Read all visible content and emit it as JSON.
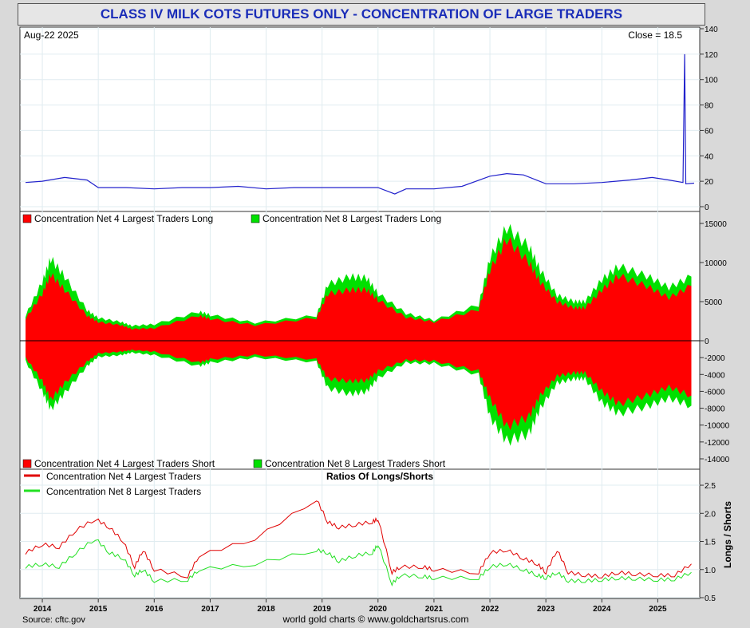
{
  "title": "CLASS IV MILK COTS FUTURES ONLY - CONCENTRATION OF LARGE TRADERS",
  "footer": {
    "source": "Source: cftc.gov",
    "credit": "world gold charts © www.goldchartsrus.com"
  },
  "colors": {
    "line_blue": "#2222cc",
    "red": "#ff0000",
    "green": "#00e000",
    "ratio_red": "#e00000",
    "ratio_green": "#22e022"
  },
  "chart_data": [
    {
      "type": "line",
      "panel": "top",
      "label_left": "Aug-22  2025",
      "label_right": "Close = 18.5",
      "ylim": [
        0,
        140
      ],
      "yticks": [
        "0",
        "20",
        "40",
        "60",
        "80",
        "100",
        "120",
        "140"
      ],
      "x": [
        2013.7,
        2014.0,
        2014.4,
        2014.8,
        2015.0,
        2015.5,
        2016.0,
        2016.5,
        2017.0,
        2017.5,
        2018.0,
        2018.5,
        2019.0,
        2019.5,
        2020.0,
        2020.3,
        2020.5,
        2021.0,
        2021.5,
        2022.0,
        2022.3,
        2022.6,
        2023.0,
        2023.5,
        2024.0,
        2024.5,
        2024.9,
        2025.2,
        2025.45,
        2025.48,
        2025.5,
        2025.65
      ],
      "values": [
        19,
        20,
        23,
        21,
        15,
        15,
        14,
        15,
        15,
        16,
        14,
        15,
        15,
        15,
        15,
        10,
        14,
        14,
        16,
        24,
        26,
        25,
        18,
        18,
        19,
        21,
        23,
        21,
        19,
        120,
        18,
        18.5
      ]
    },
    {
      "type": "area",
      "panel": "middle",
      "legend_top": [
        "Concentration Net 4 Largest Traders Long",
        "Concentration Net 8 Largest Traders Long"
      ],
      "legend_bottom": [
        "Concentration Net 4 Largest Traders Short",
        "Concentration Net 8 Largest Traders Short"
      ],
      "ylim": [
        -15000,
        16000
      ],
      "yticks": [
        "-14000",
        "-12000",
        "-10000",
        "-8000",
        "-6000",
        "-4000",
        "-2000",
        "0",
        "5000",
        "10000",
        "15000"
      ],
      "x": [
        2013.7,
        2014.0,
        2014.15,
        2014.4,
        2014.8,
        2015.0,
        2015.4,
        2015.6,
        2016.0,
        2016.8,
        2017.0,
        2017.8,
        2018.9,
        2019.1,
        2019.5,
        2019.8,
        2020.0,
        2020.5,
        2021.0,
        2021.8,
        2022.0,
        2022.3,
        2022.7,
        2022.9,
        2023.2,
        2023.5,
        2023.7,
        2024.0,
        2024.3,
        2024.8,
        2025.2,
        2025.6
      ],
      "series": [
        {
          "name": "Concentration Net 4 Largest Traders Long",
          "values": [
            2800,
            6000,
            8500,
            6500,
            3200,
            2400,
            2000,
            1500,
            1600,
            3200,
            2800,
            2000,
            2900,
            6000,
            6500,
            6500,
            5200,
            3000,
            2400,
            4000,
            9000,
            13000,
            10000,
            7500,
            5000,
            4200,
            4200,
            6500,
            8300,
            7000,
            5500,
            7000
          ]
        },
        {
          "name": "Concentration Net 8 Largest Traders Long",
          "values": [
            3200,
            7500,
            10500,
            8200,
            3900,
            2900,
            2400,
            1900,
            2100,
            3700,
            3300,
            2300,
            3200,
            7200,
            8200,
            8000,
            6000,
            3500,
            2600,
            4600,
            10500,
            14500,
            12000,
            9000,
            5800,
            5000,
            5000,
            7800,
            9500,
            8300,
            6800,
            8200
          ]
        },
        {
          "name": "Concentration Net 4 Largest Traders Short",
          "values": [
            -2000,
            -4800,
            -7000,
            -5000,
            -2500,
            -1500,
            -1300,
            -1100,
            -1300,
            -2600,
            -2200,
            -1700,
            -2200,
            -4500,
            -4800,
            -4700,
            -3600,
            -2300,
            -2400,
            -3600,
            -6800,
            -10200,
            -9000,
            -6500,
            -4200,
            -3800,
            -3800,
            -6000,
            -7500,
            -6500,
            -5500,
            -6500
          ]
        },
        {
          "name": "Concentration Net 8 Largest Traders Short",
          "values": [
            -2400,
            -6000,
            -8100,
            -6200,
            -3000,
            -1900,
            -1700,
            -1400,
            -1700,
            -3000,
            -2600,
            -2000,
            -2500,
            -5600,
            -6300,
            -6000,
            -4400,
            -2600,
            -2700,
            -4000,
            -9000,
            -11900,
            -11000,
            -8000,
            -5000,
            -4500,
            -4500,
            -7300,
            -8600,
            -7800,
            -6800,
            -7700
          ]
        }
      ]
    },
    {
      "type": "line",
      "panel": "bottom",
      "title": "Ratios Of Longs/Shorts",
      "ylabel": "Longs / Shorts",
      "ylim": [
        0.5,
        2.6
      ],
      "yticks": [
        "0.5",
        "1.0",
        "1.5",
        "2.0",
        "2.5"
      ],
      "xticks": [
        "2014",
        "2015",
        "2016",
        "2017",
        "2018",
        "2019",
        "2020",
        "2021",
        "2022",
        "2023",
        "2024",
        "2025"
      ],
      "x": [
        2013.7,
        2014.0,
        2014.3,
        2014.6,
        2014.95,
        2015.2,
        2015.45,
        2015.65,
        2015.8,
        2016.0,
        2016.6,
        2016.8,
        2017.8,
        2018.9,
        2019.1,
        2019.3,
        2019.6,
        2019.9,
        2020.0,
        2020.25,
        2020.4,
        2020.8,
        2021.0,
        2021.8,
        2022.0,
        2022.3,
        2022.6,
        2022.85,
        2023.0,
        2023.2,
        2023.4,
        2023.7,
        2024.0,
        2024.3,
        2024.6,
        2025.0,
        2025.3,
        2025.6
      ],
      "series": [
        {
          "name": "Concentration Net 4 Largest Traders",
          "values": [
            1.3,
            1.45,
            1.4,
            1.7,
            1.9,
            1.75,
            1.5,
            1.05,
            1.35,
            1.0,
            0.88,
            1.25,
            1.55,
            2.25,
            1.85,
            1.75,
            1.8,
            1.85,
            1.9,
            0.95,
            1.05,
            1.05,
            1.0,
            0.95,
            1.3,
            1.35,
            1.2,
            1.1,
            0.95,
            1.35,
            0.95,
            0.9,
            0.88,
            0.95,
            0.92,
            0.9,
            0.9,
            1.1
          ]
        },
        {
          "name": "Concentration Net 8 Largest Traders",
          "values": [
            1.05,
            1.1,
            1.05,
            1.3,
            1.55,
            1.3,
            1.2,
            0.9,
            1.0,
            0.8,
            0.82,
            1.0,
            1.1,
            1.35,
            1.3,
            1.15,
            1.25,
            1.3,
            1.45,
            0.75,
            0.9,
            0.88,
            0.85,
            0.85,
            1.05,
            1.1,
            1.0,
            0.9,
            0.85,
            0.95,
            0.8,
            0.8,
            0.82,
            0.85,
            0.84,
            0.82,
            0.83,
            0.95
          ]
        }
      ]
    }
  ]
}
